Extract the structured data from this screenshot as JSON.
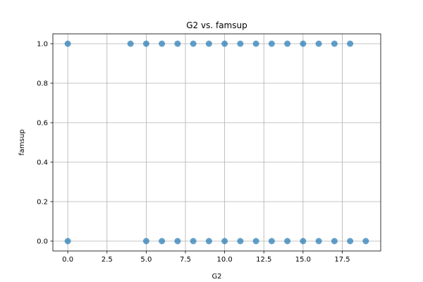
{
  "chart_data": {
    "type": "scatter",
    "title": "G2 vs. famsup",
    "xlabel": "G2",
    "ylabel": "famsup",
    "xlim": [
      -0.95,
      19.95
    ],
    "ylim": [
      -0.05,
      1.05
    ],
    "xticks": [
      0.0,
      2.5,
      5.0,
      7.5,
      10.0,
      12.5,
      15.0,
      17.5
    ],
    "xtick_labels": [
      "0.0",
      "2.5",
      "5.0",
      "7.5",
      "10.0",
      "12.5",
      "15.0",
      "17.5"
    ],
    "yticks": [
      0.0,
      0.2,
      0.4,
      0.6,
      0.8,
      1.0
    ],
    "ytick_labels": [
      "0.0",
      "0.2",
      "0.4",
      "0.6",
      "0.8",
      "1.0"
    ],
    "grid": true,
    "marker_color": "#1f77b4",
    "marker_alpha": 0.7,
    "points": [
      {
        "x": 0,
        "y": 1
      },
      {
        "x": 4,
        "y": 1
      },
      {
        "x": 5,
        "y": 1
      },
      {
        "x": 6,
        "y": 1
      },
      {
        "x": 7,
        "y": 1
      },
      {
        "x": 8,
        "y": 1
      },
      {
        "x": 9,
        "y": 1
      },
      {
        "x": 10,
        "y": 1
      },
      {
        "x": 11,
        "y": 1
      },
      {
        "x": 12,
        "y": 1
      },
      {
        "x": 13,
        "y": 1
      },
      {
        "x": 14,
        "y": 1
      },
      {
        "x": 15,
        "y": 1
      },
      {
        "x": 16,
        "y": 1
      },
      {
        "x": 17,
        "y": 1
      },
      {
        "x": 18,
        "y": 1
      },
      {
        "x": 0,
        "y": 0
      },
      {
        "x": 5,
        "y": 0
      },
      {
        "x": 6,
        "y": 0
      },
      {
        "x": 7,
        "y": 0
      },
      {
        "x": 8,
        "y": 0
      },
      {
        "x": 9,
        "y": 0
      },
      {
        "x": 10,
        "y": 0
      },
      {
        "x": 11,
        "y": 0
      },
      {
        "x": 12,
        "y": 0
      },
      {
        "x": 13,
        "y": 0
      },
      {
        "x": 14,
        "y": 0
      },
      {
        "x": 15,
        "y": 0
      },
      {
        "x": 16,
        "y": 0
      },
      {
        "x": 17,
        "y": 0
      },
      {
        "x": 18,
        "y": 0
      },
      {
        "x": 19,
        "y": 0
      }
    ]
  }
}
